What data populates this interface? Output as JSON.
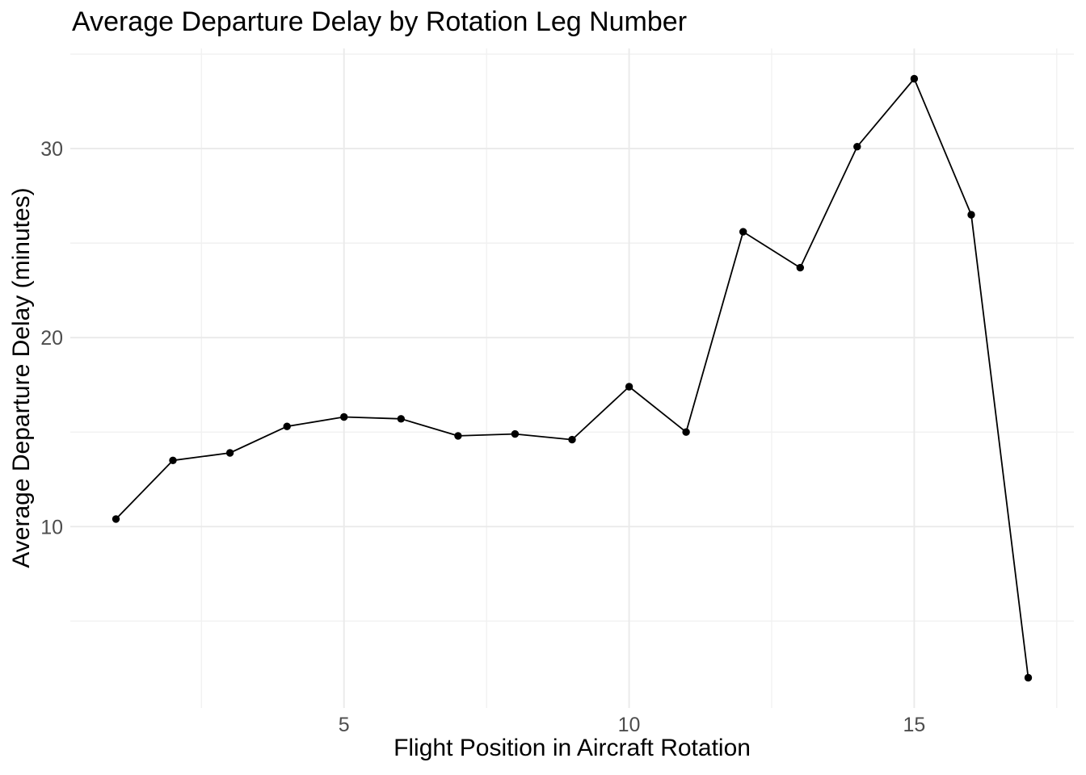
{
  "chart_data": {
    "type": "line",
    "title": "Average Departure Delay by Rotation Leg Number",
    "xlabel": "Flight Position in Aircraft Rotation",
    "ylabel": "Average Departure Delay (minutes)",
    "x": [
      1,
      2,
      3,
      4,
      5,
      6,
      7,
      8,
      9,
      10,
      11,
      12,
      13,
      14,
      15,
      16,
      17
    ],
    "y": [
      10.4,
      13.5,
      13.9,
      15.3,
      15.8,
      15.7,
      14.8,
      14.9,
      14.6,
      17.4,
      15.0,
      25.6,
      23.7,
      30.1,
      33.7,
      26.5,
      2.0
    ],
    "xlim": [
      0.2,
      17.8
    ],
    "ylim": [
      0.4,
      35.3
    ],
    "x_axis": {
      "major_ticks": [
        5,
        10,
        15
      ],
      "major_tick_labels": [
        "5",
        "10",
        "15"
      ],
      "minor_ticks": [
        2.5,
        7.5,
        12.5,
        17.5
      ]
    },
    "y_axis": {
      "major_ticks": [
        10,
        20,
        30
      ],
      "major_tick_labels": [
        "10",
        "20",
        "30"
      ],
      "minor_ticks": [
        5,
        15,
        25,
        35
      ]
    },
    "legend": "none",
    "grid": "on",
    "marker": "filled-circle",
    "style": {
      "line_color": "#000000",
      "point_color": "#000000",
      "grid_major_color": "#EAEAEA",
      "grid_minor_color": "#F1F1F1",
      "tick_label_color": "#4D4D4D",
      "title_color": "#000000",
      "axis_title_color": "#000000",
      "background": "#FFFFFF"
    }
  }
}
